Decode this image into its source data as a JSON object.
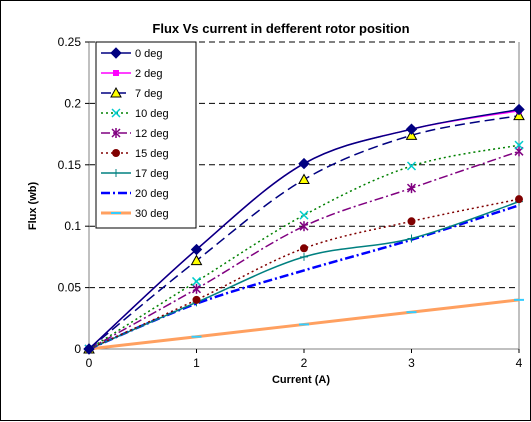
{
  "chart_data": {
    "type": "line",
    "title": "Flux Vs current in defferent rotor position",
    "xlabel": "Current (A)",
    "ylabel": "Flux (wb)",
    "xlim": [
      0,
      4
    ],
    "ylim": [
      0,
      0.25
    ],
    "xticks": [
      "0",
      "1",
      "2",
      "3",
      "4"
    ],
    "yticks": [
      "0",
      "0.05",
      "0.1",
      "0.15",
      "0.2",
      "0.25"
    ],
    "grid": "horizontal dashed",
    "legend_position": "top-left",
    "x": [
      0,
      1,
      2,
      3,
      4
    ],
    "series": [
      {
        "name": "0 deg",
        "values": [
          0,
          0.081,
          0.151,
          0.179,
          0.195
        ],
        "color": "#000080",
        "marker": "diamond",
        "dash": "solid"
      },
      {
        "name": "2 deg",
        "values": [
          0,
          0.081,
          0.151,
          0.179,
          0.194
        ],
        "color": "#FF00FF",
        "marker": "square",
        "dash": "solid"
      },
      {
        "name": "7 deg",
        "values": [
          0,
          0.072,
          0.138,
          0.174,
          0.19
        ],
        "color": "#000080",
        "marker": "triangle",
        "dash": "longdash"
      },
      {
        "name": "10 deg",
        "values": [
          0,
          0.055,
          0.109,
          0.149,
          0.166
        ],
        "color": "#008000",
        "marker": "x",
        "dash": "dotted"
      },
      {
        "name": "12 deg",
        "values": [
          0,
          0.049,
          0.1,
          0.131,
          0.161
        ],
        "color": "#800080",
        "marker": "star",
        "dash": "dashdot"
      },
      {
        "name": "15 deg",
        "values": [
          0,
          0.04,
          0.082,
          0.104,
          0.122
        ],
        "color": "#800000",
        "marker": "circle",
        "dash": "dotted"
      },
      {
        "name": "17 deg",
        "values": [
          0,
          0.038,
          0.075,
          0.09,
          0.12
        ],
        "color": "#008080",
        "marker": "plus",
        "dash": "solid"
      },
      {
        "name": "20 deg",
        "values": [
          0,
          0.037,
          0.064,
          0.089,
          0.117
        ],
        "color": "#0000FF",
        "marker": "none",
        "dash": "dashdot"
      },
      {
        "name": "30 deg",
        "values": [
          0,
          0.01,
          0.02,
          0.03,
          0.04
        ],
        "color": "#FFA060",
        "marker": "dash",
        "dash": "solid"
      }
    ]
  }
}
